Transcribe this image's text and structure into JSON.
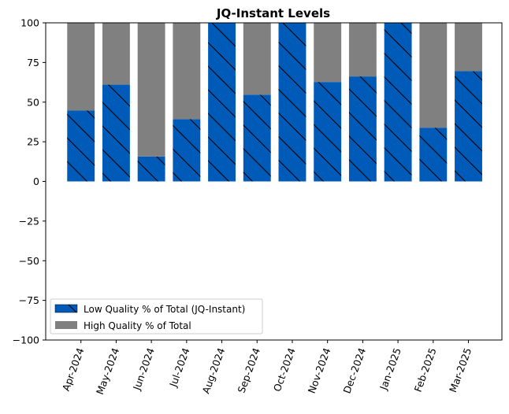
{
  "chart_data": {
    "type": "bar",
    "stacked": true,
    "title": "JQ-Instant Levels",
    "xlabel": "",
    "ylabel": "",
    "ylim": [
      -100,
      100
    ],
    "yticks": [
      100,
      75,
      50,
      25,
      0,
      -25,
      -50,
      -75,
      -100
    ],
    "grid": false,
    "legend_position": "bottom-left",
    "categories": [
      "Apr-2024",
      "May-2024",
      "Jun-2024",
      "Jul-2024",
      "Aug-2024",
      "Sep-2024",
      "Oct-2024",
      "Nov-2024",
      "Dec-2024",
      "Jan-2025",
      "Feb-2025",
      "Mar-2025"
    ],
    "series": [
      {
        "name": "Low Quality % of Total (JQ-Instant)",
        "color": "#005ab8",
        "hatch": "\\",
        "values": [
          44.7,
          61.0,
          15.7,
          39.3,
          100,
          54.7,
          100,
          62.7,
          66.2,
          100,
          33.9,
          69.5
        ]
      },
      {
        "name": "High Quality % of Total",
        "color": "#808080",
        "values": [
          55.3,
          39.0,
          84.3,
          60.7,
          0,
          45.3,
          0,
          37.3,
          33.8,
          0,
          66.1,
          30.5
        ]
      }
    ]
  }
}
